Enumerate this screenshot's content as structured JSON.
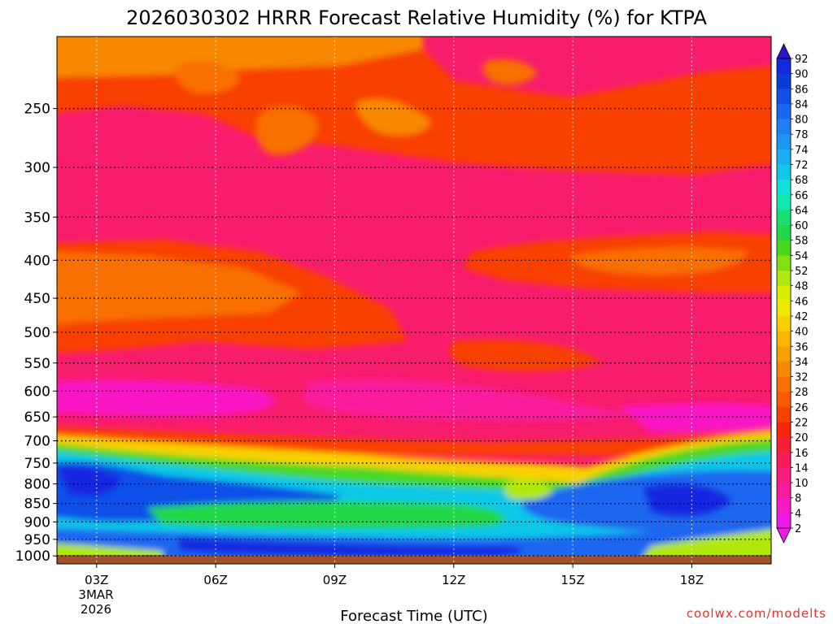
{
  "chart_data": {
    "type": "heatmap",
    "title": "2026030302 HRRR Forecast Relative Humidity (%) for KTPA",
    "xlabel": "Forecast Time (UTC)",
    "ylabel": "",
    "x_ticks": [
      "03Z",
      "06Z",
      "09Z",
      "12Z",
      "15Z",
      "18Z"
    ],
    "x_date_label": [
      "3MAR",
      "2026"
    ],
    "x_hours": [
      3,
      6,
      9,
      12,
      15,
      18
    ],
    "xlim": [
      2,
      20
    ],
    "y_ticks": [
      250,
      300,
      350,
      400,
      450,
      500,
      550,
      600,
      650,
      700,
      750,
      800,
      850,
      900,
      950,
      1000
    ],
    "ylim": [
      200,
      1025
    ],
    "y_scale": "log-pressure (inverted)",
    "grid": true,
    "colorbar": {
      "levels": [
        92,
        90,
        86,
        84,
        80,
        78,
        74,
        72,
        68,
        66,
        64,
        60,
        58,
        54,
        52,
        48,
        46,
        42,
        40,
        36,
        34,
        32,
        28,
        26,
        22,
        20,
        16,
        14,
        10,
        8,
        4,
        2
      ],
      "colors": [
        "#2818c8",
        "#1428e0",
        "#0a3ad8",
        "#1050e8",
        "#1a66f0",
        "#1e7ef2",
        "#1a96f0",
        "#18aef0",
        "#10c8e8",
        "#10e0d8",
        "#10e8b0",
        "#18e070",
        "#20d848",
        "#48d820",
        "#80e010",
        "#b0e810",
        "#d8f000",
        "#f0e800",
        "#f8d000",
        "#f8b800",
        "#f8a000",
        "#f88800",
        "#f87000",
        "#f85a00",
        "#f84000",
        "#f82810",
        "#f82038",
        "#f81c58",
        "#f81c7c",
        "#f81c9c",
        "#f818c4",
        "#f018e8"
      ],
      "position": "right"
    },
    "credit": "coolwx.com/modelts"
  }
}
